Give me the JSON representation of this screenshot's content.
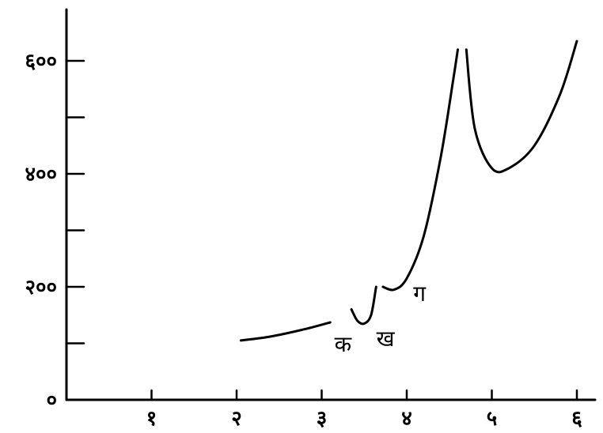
{
  "chart_data": {
    "type": "line",
    "title": "",
    "xlabel": "",
    "ylabel": "",
    "xlim": [
      0,
      6.1
    ],
    "ylim": [
      0,
      600
    ],
    "x_ticks": [
      {
        "value": 1,
        "label": "१"
      },
      {
        "value": 2,
        "label": "२"
      },
      {
        "value": 3,
        "label": "३"
      },
      {
        "value": 4,
        "label": "४"
      },
      {
        "value": 5,
        "label": "५"
      },
      {
        "value": 6,
        "label": "६"
      }
    ],
    "y_ticks": [
      {
        "value": 0,
        "label": "०"
      },
      {
        "value": 100,
        "label": ""
      },
      {
        "value": 200,
        "label": "२००"
      },
      {
        "value": 300,
        "label": ""
      },
      {
        "value": 400,
        "label": "४००"
      },
      {
        "value": 500,
        "label": ""
      },
      {
        "value": 600,
        "label": "६००"
      }
    ],
    "grid": false,
    "series": [
      {
        "label": "क",
        "label_at": [
          3.25,
          85
        ],
        "x": [
          2.05,
          2.4,
          2.8,
          3.1
        ],
        "y": [
          105,
          112,
          125,
          137
        ]
      },
      {
        "label": "ख",
        "label_at": [
          3.75,
          95
        ],
        "x": [
          3.35,
          3.42,
          3.5,
          3.58,
          3.64
        ],
        "y": [
          160,
          140,
          135,
          150,
          200
        ]
      },
      {
        "label": "ग",
        "label_at": [
          4.15,
          175
        ],
        "x": [
          3.72,
          3.85,
          4.0,
          4.2,
          4.4,
          4.55,
          4.6
        ],
        "y": [
          200,
          195,
          215,
          290,
          430,
          570,
          620
        ]
      },
      {
        "label": "",
        "label_at": null,
        "x": [
          4.7,
          4.8,
          5.0,
          5.2,
          5.5,
          5.8,
          6.0
        ],
        "y": [
          620,
          480,
          410,
          410,
          450,
          540,
          635
        ]
      }
    ]
  }
}
